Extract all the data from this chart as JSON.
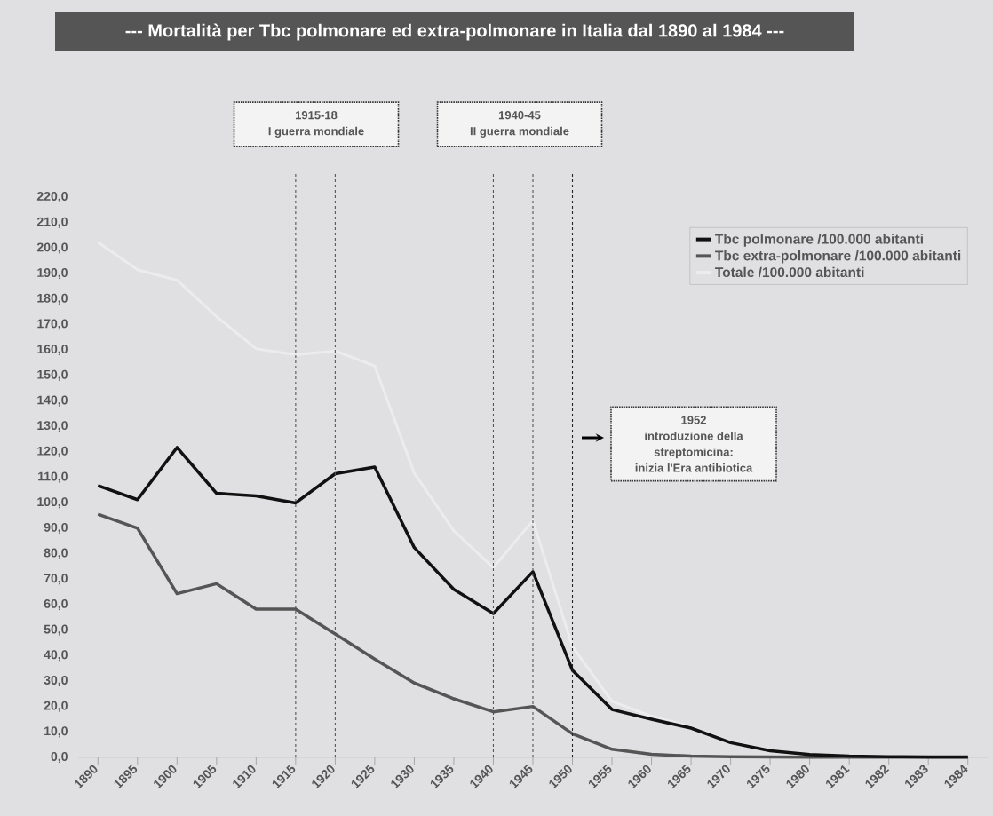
{
  "chart_data": {
    "type": "line",
    "title": "---   Mortalità per Tbc polmonare ed extra-polmonare in Italia dal 1890 al 1984   ---",
    "categories": [
      "1890",
      "1895",
      "1900",
      "1905",
      "1910",
      "1915",
      "1920",
      "1925",
      "1930",
      "1935",
      "1940",
      "1945",
      "1950",
      "1955",
      "1960",
      "1965",
      "1970",
      "1975",
      "1980",
      "1981",
      "1982",
      "1983",
      "1984"
    ],
    "series": [
      {
        "name": "Tbc polmonare /100.000 abitanti",
        "color": "#111111",
        "values": [
          106.7,
          101.2,
          121.7,
          103.7,
          102.7,
          99.9,
          111.4,
          114.0,
          82.4,
          66.0,
          56.5,
          72.9,
          34.2,
          18.8,
          15.0,
          11.5,
          5.8,
          2.6,
          1.1,
          0.5,
          0.3,
          0.2,
          0.2
        ]
      },
      {
        "name": "Tbc extra-polmonare /100.000 abitanti",
        "color": "#555555",
        "values": [
          95.5,
          90.0,
          64.3,
          68.2,
          58.2,
          58.2,
          48.5,
          38.6,
          29.2,
          23.0,
          17.9,
          20.0,
          9.3,
          3.2,
          1.2,
          0.5,
          0.3,
          0.2,
          0.1,
          0.1,
          0.1,
          0.1,
          0.1
        ]
      },
      {
        "name": "Totale /100.000 abitanti",
        "color": "#ececee",
        "values": [
          202.3,
          191.5,
          187.4,
          173.1,
          160.5,
          158.1,
          159.6,
          153.7,
          111.6,
          89.0,
          74.5,
          93.0,
          43.5,
          22.0,
          16.2,
          12.0,
          6.1,
          2.8,
          1.2,
          0.6,
          0.4,
          0.3,
          0.3
        ]
      }
    ],
    "ylim": [
      0,
      220
    ],
    "yticks": [
      {
        "value": 0,
        "label": "0,0"
      },
      {
        "value": 10,
        "label": "10,0"
      },
      {
        "value": 20,
        "label": "20,0"
      },
      {
        "value": 30,
        "label": "30,0"
      },
      {
        "value": 40,
        "label": "40,0"
      },
      {
        "value": 50,
        "label": "50,0"
      },
      {
        "value": 60,
        "label": "60,0"
      },
      {
        "value": 70,
        "label": "70,0"
      },
      {
        "value": 80,
        "label": "80,0"
      },
      {
        "value": 90,
        "label": "90,0"
      },
      {
        "value": 100,
        "label": "100,0"
      },
      {
        "value": 110,
        "label": "110,0"
      },
      {
        "value": 120,
        "label": "120,0"
      },
      {
        "value": 130,
        "label": "130,0"
      },
      {
        "value": 140,
        "label": "140,0"
      },
      {
        "value": 150,
        "label": "150,0"
      },
      {
        "value": 160,
        "label": "160,0"
      },
      {
        "value": 170,
        "label": "170,0"
      },
      {
        "value": 180,
        "label": "180,0"
      },
      {
        "value": 190,
        "label": "190,0"
      },
      {
        "value": 200,
        "label": "200,0"
      },
      {
        "value": 210,
        "label": "210,0"
      },
      {
        "value": 220,
        "label": "220,0"
      }
    ],
    "ref_lines": [
      {
        "axis": "x",
        "value": "1915",
        "color": "#555555",
        "line_style": "dashed"
      },
      {
        "axis": "x",
        "value": "1920",
        "color": "#555555",
        "line_style": "dashed"
      },
      {
        "axis": "x",
        "value": "1940",
        "color": "#555555",
        "line_style": "dashed"
      },
      {
        "axis": "x",
        "value": "1945",
        "color": "#555555",
        "line_style": "dashed"
      },
      {
        "axis": "x",
        "value": "1950",
        "color": "#222222",
        "line_style": "dashed"
      }
    ],
    "annotations": [
      "1915-18",
      "I guerra mondiale",
      "1940-45",
      "II guerra mondiale",
      "1952",
      "introduzione della",
      "streptomicina:",
      "inizia l'Era antibiotica"
    ],
    "legend": "top right"
  }
}
